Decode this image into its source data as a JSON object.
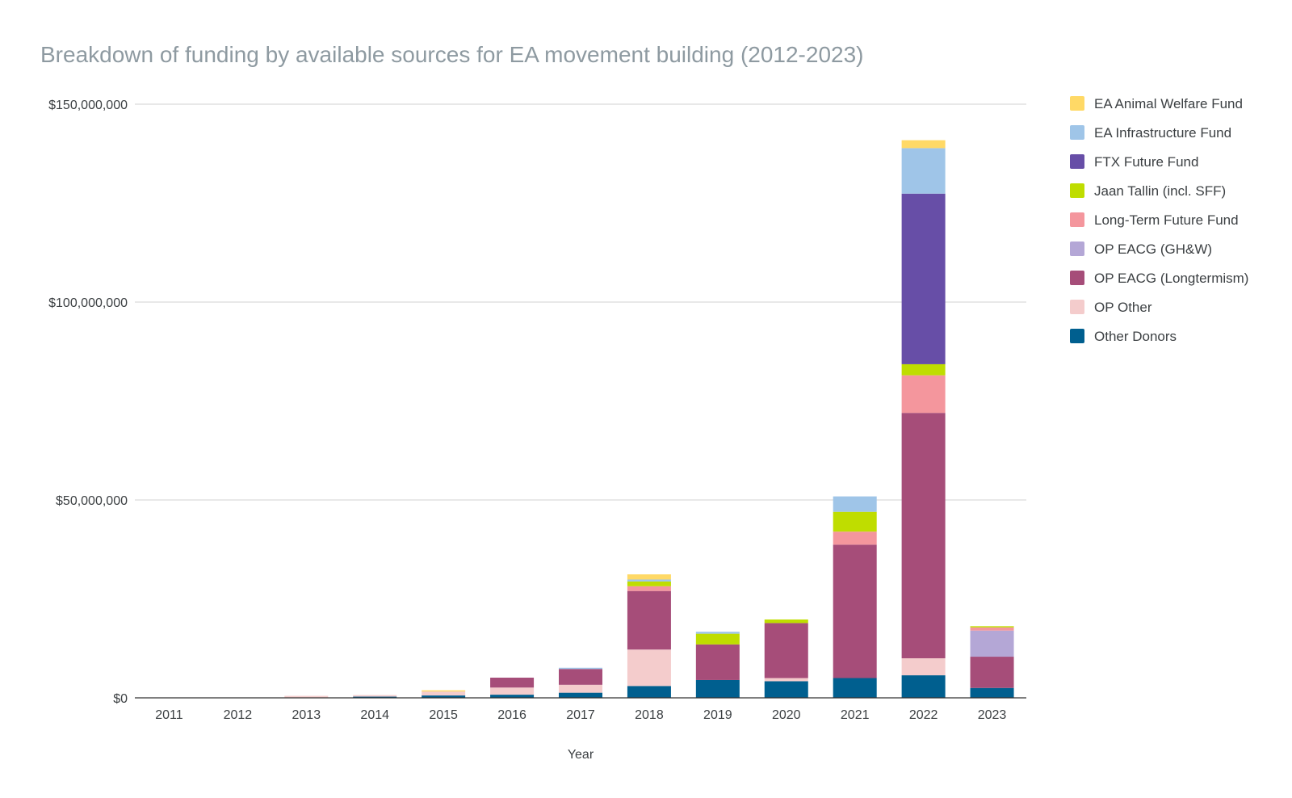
{
  "chart_data": {
    "type": "bar",
    "stacked": true,
    "title": "Breakdown of funding by available sources for EA movement building (2012-2023)",
    "xlabel": "Year",
    "ylabel": "",
    "ylim": [
      0,
      150000000
    ],
    "yticks": [
      0,
      50000000,
      100000000,
      150000000
    ],
    "ytick_labels": [
      "$0",
      "$50,000,000",
      "$100,000,000",
      "$150,000,000"
    ],
    "grid": true,
    "legend_position": "right",
    "categories": [
      "2011",
      "2012",
      "2013",
      "2014",
      "2015",
      "2016",
      "2017",
      "2018",
      "2019",
      "2020",
      "2021",
      "2022",
      "2023"
    ],
    "series": [
      {
        "name": "Other Donors",
        "color": "#005f8f",
        "values": [
          0,
          0,
          100000,
          300000,
          600000,
          800000,
          1300000,
          3000000,
          4500000,
          4200000,
          5000000,
          5700000,
          2500000
        ]
      },
      {
        "name": "OP Other",
        "color": "#f4cccc",
        "values": [
          0,
          0,
          400000,
          400000,
          1000000,
          1800000,
          2000000,
          9200000,
          0,
          800000,
          0,
          4300000,
          0
        ]
      },
      {
        "name": "OP EACG (Longtermism)",
        "color": "#a64d79",
        "values": [
          0,
          0,
          0,
          0,
          0,
          2500000,
          4000000,
          14800000,
          9000000,
          13900000,
          33700000,
          62000000,
          7900000
        ]
      },
      {
        "name": "OP EACG (GH&W)",
        "color": "#b4a7d6",
        "values": [
          0,
          0,
          0,
          0,
          0,
          0,
          0,
          0,
          0,
          0,
          0,
          0,
          6600000
        ]
      },
      {
        "name": "Long-Term Future Fund",
        "color": "#f4969d",
        "values": [
          0,
          0,
          0,
          0,
          0,
          0,
          0,
          1200000,
          0,
          0,
          3300000,
          9500000,
          800000
        ]
      },
      {
        "name": "Jaan Tallin (incl. SFF)",
        "color": "#bfdd00",
        "values": [
          0,
          0,
          0,
          0,
          0,
          0,
          0,
          1200000,
          2700000,
          900000,
          5000000,
          2800000,
          300000
        ]
      },
      {
        "name": "FTX Future Fund",
        "color": "#674ea7",
        "values": [
          0,
          0,
          0,
          0,
          0,
          0,
          0,
          0,
          0,
          0,
          0,
          43100000,
          0
        ]
      },
      {
        "name": "EA Infrastructure Fund",
        "color": "#9fc5e8",
        "values": [
          0,
          0,
          0,
          0,
          0,
          0,
          300000,
          500000,
          500000,
          0,
          3900000,
          11500000,
          0
        ]
      },
      {
        "name": "EA Animal Welfare Fund",
        "color": "#ffd966",
        "values": [
          0,
          0,
          0,
          0,
          300000,
          0,
          0,
          1300000,
          0,
          0,
          0,
          2000000,
          0
        ]
      }
    ],
    "legend_order": [
      "EA Animal Welfare Fund",
      "EA Infrastructure Fund",
      "FTX Future Fund",
      "Jaan Tallin (incl. SFF)",
      "Long-Term Future Fund",
      "OP EACG (GH&W)",
      "OP EACG (Longtermism)",
      "OP Other",
      "Other Donors"
    ]
  }
}
